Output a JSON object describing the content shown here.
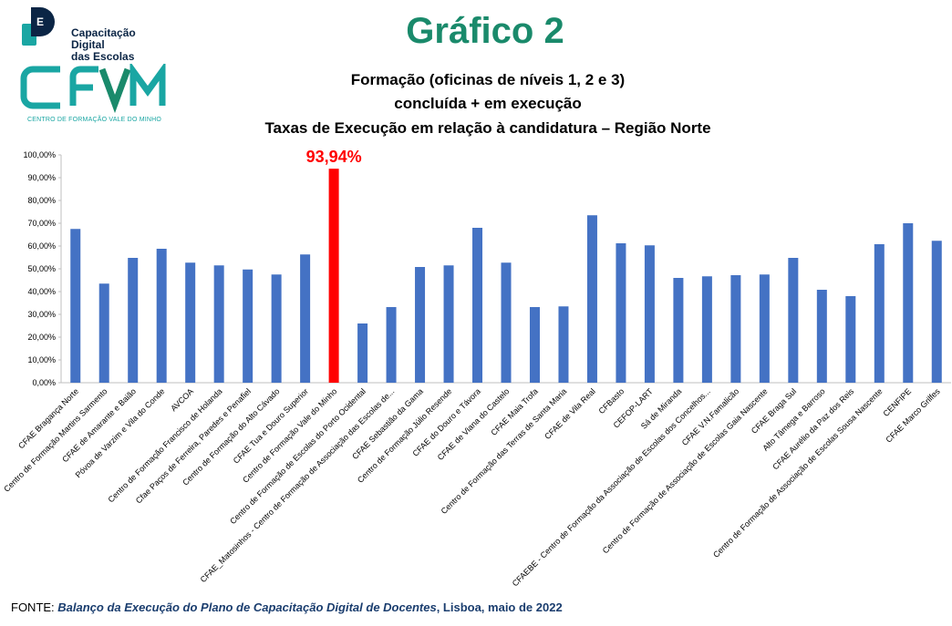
{
  "header": {
    "logo1_text": [
      "Capacitação Digital",
      "das Escolas"
    ],
    "logo2_text": "CFVM",
    "logo2_subtitle": "CENTRO DE FORMAÇÃO VALE DO MINHO",
    "big_title": "Gráfico 2"
  },
  "footer": {
    "prefix": "FONTE: ",
    "source_title": "Balanço da Execução do  Plano de Capacitação Digital de Docentes",
    "suffix": ", Lisboa, maio de 2022"
  },
  "colors": {
    "bar": "#4472c4",
    "highlight": "#ff0000",
    "title_green": "#1a8a6b"
  },
  "chart_data": {
    "type": "bar",
    "title": [
      "Formação (oficinas de níveis 1, 2 e 3)",
      "concluída + em execução",
      "Taxas de Execução em relação à candidatura – Região Norte"
    ],
    "xlabel": "",
    "ylabel": "",
    "ylim": [
      0,
      100
    ],
    "yticks": [
      "0,00%",
      "10,00%",
      "20,00%",
      "30,00%",
      "40,00%",
      "50,00%",
      "60,00%",
      "70,00%",
      "80,00%",
      "90,00%",
      "100,00%"
    ],
    "grid": false,
    "highlight_index": 9,
    "highlight_label": "93,94%",
    "categories": [
      "CFAE Bragança Norte",
      "Centro de Formação Martins Sarmento",
      "CFAE de Amarante e Baião",
      "Póvoa de Varzim e Vila do Conde",
      "AVCOA",
      "Centro de Formação Francisco de Holanda",
      "Cfae Paços de Ferreira, Paredes e Penafiel",
      "Centro de Formação do Alto Cávado",
      "CFAE Tua e Douro Superior",
      "Centro de Formação Vale do Minho",
      "Centro de Formação de Escolas do Porto Ocidental",
      "CFAE_Matosinhos - Centro de Formação de Associação das Escolas de...",
      "CFAE Sebastião da Gama",
      "Centro de Formação Júlio Resende",
      "CFAE do Douro e Távora",
      "CFAE de Viana do Castelo",
      "CFAE Maia Trofa",
      "Centro de Formação das Terras de Santa Maria",
      "CFAE de Vila Real",
      "CFBasto",
      "CEFOP-LART",
      "Sá de Miranda",
      "CFAEBE - Centro de Formação da Associação de Escolas dos Concelhos...",
      "CFAE V.N.Famalicão",
      "Centro de Formação de Associação de Escolas Gaia Nascente",
      "CFAE Braga Sul",
      "Alto Tâmega e Barroso",
      "CFAE Aurélio da Paz dos Reis",
      "Centro de Formação de Associação de Escolas Sousa Nascente",
      "CENFIPE",
      "CFAE Marco Grilfes"
    ],
    "values": [
      67.5,
      43.5,
      54.8,
      58.8,
      52.7,
      51.5,
      49.7,
      47.5,
      56.3,
      93.94,
      26.0,
      33.2,
      50.8,
      51.5,
      68.0,
      52.7,
      33.2,
      33.5,
      73.5,
      61.2,
      60.3,
      46.0,
      46.7,
      47.2,
      47.5,
      54.8,
      40.8,
      38.0,
      60.8,
      70.0,
      62.3
    ]
  }
}
